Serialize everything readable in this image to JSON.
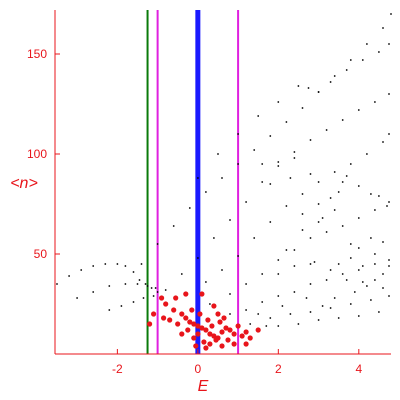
{
  "chart_data": {
    "type": "scatter",
    "title": "",
    "xlabel": "E",
    "ylabel": "<n>",
    "xlim": [
      -3.55,
      4.8
    ],
    "ylim": [
      0,
      172
    ],
    "x_ticks": [
      -2,
      0,
      2,
      4
    ],
    "y_ticks": [
      50,
      100,
      150
    ],
    "x_tick_labels": [
      "-2",
      "0",
      "2",
      "4"
    ],
    "y_tick_labels": [
      "50",
      "100",
      "150"
    ],
    "grid": false,
    "legend": "none",
    "axis_color": "#e8151b",
    "vertical_lines": [
      {
        "x": -1.25,
        "color": "#0a7a0a"
      },
      {
        "x": -1.0,
        "color": "#e020e0"
      },
      {
        "x": 0.0,
        "color": "#1a1aff"
      },
      {
        "x": 1.0,
        "color": "#e020e0"
      }
    ],
    "series": [
      {
        "color": "#000000",
        "points": [
          [
            -3.5,
            35
          ],
          [
            -3.2,
            39
          ],
          [
            -2.9,
            42
          ],
          [
            -2.6,
            44
          ],
          [
            -2.3,
            45
          ],
          [
            -2.0,
            45
          ],
          [
            -1.8,
            44
          ],
          [
            -1.6,
            41
          ],
          [
            -1.45,
            37
          ],
          [
            -1.3,
            35
          ],
          [
            -1.15,
            33
          ],
          [
            -1.0,
            31
          ],
          [
            -3.0,
            28
          ],
          [
            -2.6,
            31
          ],
          [
            -2.2,
            34
          ],
          [
            -1.8,
            35
          ],
          [
            -1.5,
            35
          ],
          [
            -1.25,
            34
          ],
          [
            -1.05,
            33
          ],
          [
            -2.2,
            22
          ],
          [
            -1.9,
            24
          ],
          [
            -1.6,
            26
          ],
          [
            -1.35,
            28
          ],
          [
            -1.1,
            29
          ],
          [
            -1.4,
            45
          ],
          [
            -1.0,
            55
          ],
          [
            -0.6,
            64
          ],
          [
            -0.2,
            73
          ],
          [
            0.2,
            81
          ],
          [
            0.6,
            88
          ],
          [
            1.0,
            95
          ],
          [
            1.4,
            102
          ],
          [
            1.8,
            109
          ],
          [
            2.2,
            116
          ],
          [
            2.6,
            123
          ],
          [
            3.0,
            131
          ],
          [
            3.4,
            139
          ],
          [
            3.8,
            147
          ],
          [
            4.2,
            155
          ],
          [
            4.6,
            163
          ],
          [
            4.8,
            170
          ],
          [
            0.0,
            88
          ],
          [
            0.5,
            100
          ],
          [
            1.0,
            110
          ],
          [
            1.5,
            119
          ],
          [
            2.0,
            126
          ],
          [
            2.5,
            134
          ],
          [
            2.75,
            133
          ],
          [
            3.0,
            131
          ],
          [
            3.3,
            136
          ],
          [
            3.7,
            142
          ],
          [
            4.1,
            147
          ],
          [
            4.5,
            151
          ],
          [
            4.75,
            155
          ],
          [
            -0.8,
            32
          ],
          [
            -0.4,
            40
          ],
          [
            0.0,
            48
          ],
          [
            0.4,
            58
          ],
          [
            0.8,
            67
          ],
          [
            1.2,
            76
          ],
          [
            1.6,
            86
          ],
          [
            2.0,
            94
          ],
          [
            2.4,
            101
          ],
          [
            2.8,
            107
          ],
          [
            3.2,
            112
          ],
          [
            3.6,
            117
          ],
          [
            4.0,
            122
          ],
          [
            4.4,
            126
          ],
          [
            4.75,
            130
          ],
          [
            1.6,
            95
          ],
          [
            2.0,
            96
          ],
          [
            2.4,
            98
          ],
          [
            1.8,
            85
          ],
          [
            2.3,
            88
          ],
          [
            2.8,
            90
          ],
          [
            -0.3,
            30
          ],
          [
            0.2,
            36
          ],
          [
            0.6,
            42
          ],
          [
            1.0,
            49
          ],
          [
            1.4,
            58
          ],
          [
            1.8,
            66
          ],
          [
            2.2,
            74
          ],
          [
            2.6,
            80
          ],
          [
            3.0,
            86
          ],
          [
            3.4,
            91
          ],
          [
            3.8,
            95
          ],
          [
            4.2,
            100
          ],
          [
            4.6,
            106
          ],
          [
            4.75,
            110
          ],
          [
            3.0,
            75
          ],
          [
            3.3,
            78
          ],
          [
            3.5,
            81
          ],
          [
            3.6,
            86
          ],
          [
            3.7,
            89
          ],
          [
            4.0,
            84
          ],
          [
            4.3,
            80
          ],
          [
            4.5,
            79
          ],
          [
            4.7,
            74
          ],
          [
            0.3,
            25
          ],
          [
            0.8,
            30
          ],
          [
            1.2,
            35
          ],
          [
            1.6,
            40
          ],
          [
            2.0,
            47
          ],
          [
            2.4,
            52
          ],
          [
            2.8,
            58
          ],
          [
            3.2,
            61
          ],
          [
            3.6,
            64
          ],
          [
            4.0,
            68
          ],
          [
            4.4,
            72
          ],
          [
            4.75,
            76
          ],
          [
            3.8,
            55
          ],
          [
            4.0,
            53
          ],
          [
            4.3,
            58
          ],
          [
            4.6,
            56
          ],
          [
            3.5,
            45
          ],
          [
            3.8,
            48
          ],
          [
            4.1,
            44
          ],
          [
            4.4,
            50
          ],
          [
            4.75,
            44
          ],
          [
            0.8,
            20
          ],
          [
            1.2,
            22
          ],
          [
            1.6,
            26
          ],
          [
            2.0,
            29
          ],
          [
            2.4,
            31
          ],
          [
            2.8,
            35
          ],
          [
            3.2,
            37
          ],
          [
            3.6,
            40
          ],
          [
            4.0,
            42
          ],
          [
            4.4,
            45
          ],
          [
            4.75,
            47
          ],
          [
            1.3,
            15
          ],
          [
            1.8,
            18
          ],
          [
            2.3,
            20
          ],
          [
            2.8,
            21
          ],
          [
            3.3,
            23
          ],
          [
            3.8,
            25
          ],
          [
            4.3,
            27
          ],
          [
            4.75,
            29
          ],
          [
            2.0,
            14
          ],
          [
            2.5,
            15
          ],
          [
            3.0,
            17
          ],
          [
            3.5,
            18
          ],
          [
            4.0,
            19
          ],
          [
            4.5,
            21
          ],
          [
            1.5,
            20
          ],
          [
            1.7,
            14
          ],
          [
            2.1,
            24
          ],
          [
            2.7,
            28
          ],
          [
            3.1,
            24
          ],
          [
            3.4,
            28
          ],
          [
            3.9,
            31
          ],
          [
            4.2,
            34
          ],
          [
            4.6,
            33
          ],
          [
            2.0,
            40
          ],
          [
            2.4,
            44
          ],
          [
            2.9,
            46
          ],
          [
            3.3,
            42
          ],
          [
            3.7,
            37
          ],
          [
            4.1,
            36
          ],
          [
            4.4,
            37
          ],
          [
            4.6,
            40
          ],
          [
            2.2,
            52
          ],
          [
            2.6,
            62
          ],
          [
            3.0,
            66
          ],
          [
            3.4,
            72
          ],
          [
            2.6,
            70
          ],
          [
            3.1,
            68
          ],
          [
            2.8,
            45
          ]
        ]
      },
      {
        "color": "#e8151b",
        "points": [
          [
            -0.9,
            28
          ],
          [
            -0.8,
            25
          ],
          [
            -0.6,
            22
          ],
          [
            -0.4,
            20
          ],
          [
            -0.3,
            18
          ],
          [
            -0.2,
            16
          ],
          [
            -0.1,
            15
          ],
          [
            0.0,
            14
          ],
          [
            0.1,
            13
          ],
          [
            0.2,
            12
          ],
          [
            0.3,
            10
          ],
          [
            0.4,
            9
          ],
          [
            0.5,
            8
          ],
          [
            0.6,
            11
          ],
          [
            0.7,
            13
          ],
          [
            0.8,
            12
          ],
          [
            0.9,
            10
          ],
          [
            1.0,
            14
          ],
          [
            1.1,
            9
          ],
          [
            1.2,
            11
          ],
          [
            -0.5,
            15
          ],
          [
            -0.25,
            12
          ],
          [
            0.0,
            10
          ],
          [
            0.15,
            6
          ],
          [
            0.3,
            5
          ],
          [
            0.45,
            7
          ],
          [
            0.6,
            4
          ],
          [
            0.2,
            3
          ],
          [
            -0.1,
            8
          ],
          [
            0.35,
            14
          ],
          [
            -0.7,
            17
          ],
          [
            -0.55,
            28
          ],
          [
            -0.85,
            18
          ],
          [
            0.05,
            20
          ],
          [
            0.25,
            17
          ],
          [
            0.75,
            7
          ],
          [
            0.9,
            5
          ],
          [
            1.3,
            8
          ],
          [
            1.5,
            12
          ],
          [
            -0.15,
            22
          ],
          [
            0.55,
            16
          ],
          [
            -0.4,
            10
          ],
          [
            -0.3,
            30
          ],
          [
            0.1,
            30
          ],
          [
            0.4,
            24
          ],
          [
            0.5,
            20
          ],
          [
            -1.1,
            20
          ],
          [
            -1.2,
            15
          ],
          [
            0.65,
            18
          ],
          [
            1.2,
            5
          ],
          [
            -0.05,
            4
          ]
        ]
      }
    ]
  }
}
